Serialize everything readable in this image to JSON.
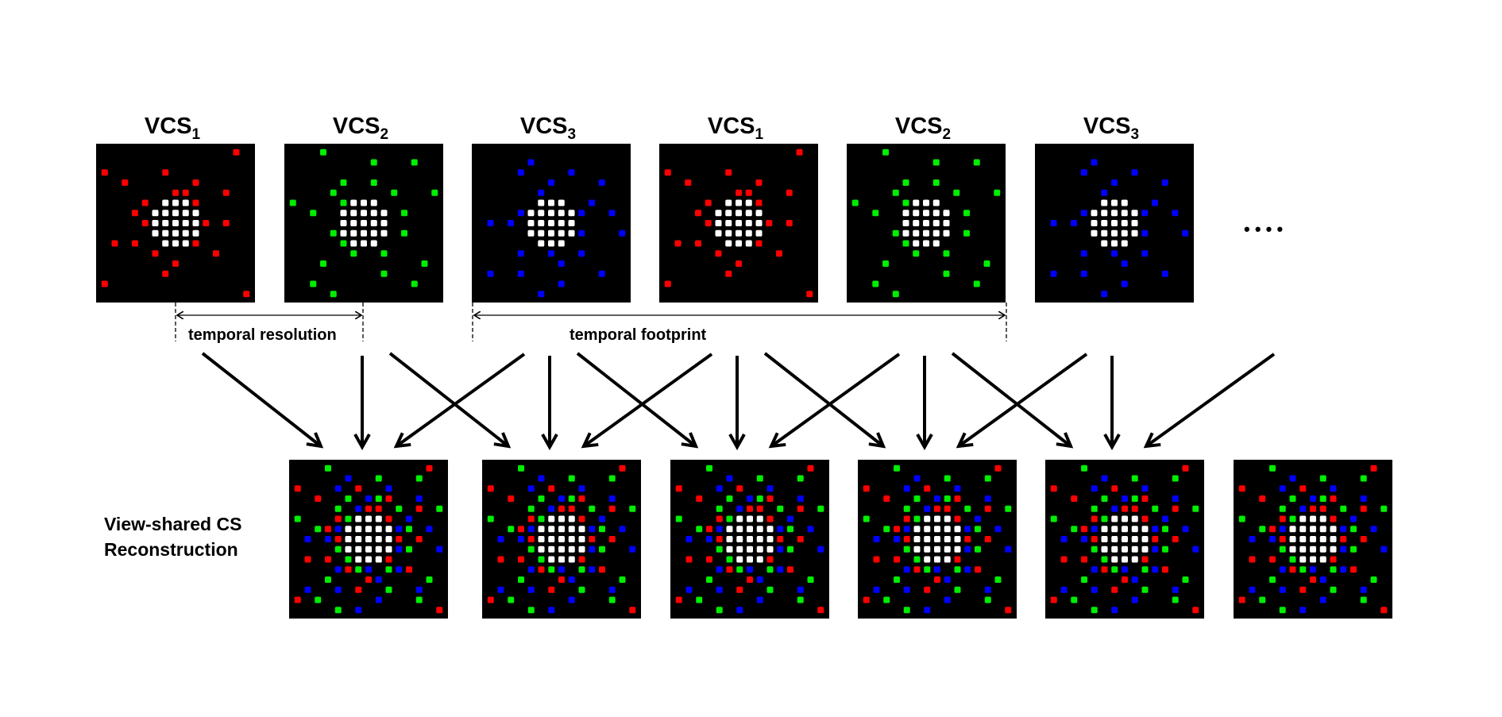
{
  "top_row": {
    "frames": [
      {
        "title": "VCS",
        "subscript": "1",
        "set": "vcs1"
      },
      {
        "title": "VCS",
        "subscript": "2",
        "set": "vcs2"
      },
      {
        "title": "VCS",
        "subscript": "3",
        "set": "vcs3"
      },
      {
        "title": "VCS",
        "subscript": "1",
        "set": "vcs1"
      },
      {
        "title": "VCS",
        "subscript": "2",
        "set": "vcs2"
      },
      {
        "title": "VCS",
        "subscript": "3",
        "set": "vcs3"
      }
    ],
    "ellipsis": "• • • •"
  },
  "annotations": {
    "temporal_resolution": "temporal resolution",
    "temporal_footprint": "temporal footprint"
  },
  "bottom_row": {
    "label_line1": "View-shared CS",
    "label_line2": "Reconstruction",
    "frame_count": 6
  },
  "colors": {
    "background": "#000000",
    "center": "#ffffff",
    "vcs1": "#ff0000",
    "vcs2": "#00ee00",
    "vcs3": "#0000ff"
  },
  "sampling": {
    "center": [
      [
        -1,
        -2
      ],
      [
        0,
        -2
      ],
      [
        1,
        -2
      ],
      [
        -2,
        -1
      ],
      [
        -1,
        -1
      ],
      [
        0,
        -1
      ],
      [
        1,
        -1
      ],
      [
        2,
        -1
      ],
      [
        -2,
        0
      ],
      [
        -1,
        0
      ],
      [
        0,
        0
      ],
      [
        1,
        0
      ],
      [
        2,
        0
      ],
      [
        -2,
        1
      ],
      [
        -1,
        1
      ],
      [
        0,
        1
      ],
      [
        1,
        1
      ],
      [
        2,
        1
      ],
      [
        -1,
        2
      ],
      [
        0,
        2
      ],
      [
        1,
        2
      ]
    ],
    "vcs1": [
      [
        6,
        -7
      ],
      [
        -7,
        -5
      ],
      [
        -1,
        -5
      ],
      [
        -5,
        -4
      ],
      [
        2,
        -4
      ],
      [
        0,
        -3
      ],
      [
        1,
        -3
      ],
      [
        5,
        -3
      ],
      [
        -3,
        -2
      ],
      [
        2,
        -2
      ],
      [
        -4,
        -1
      ],
      [
        -3,
        0
      ],
      [
        3,
        0
      ],
      [
        5,
        0
      ],
      [
        -6,
        2
      ],
      [
        -4,
        2
      ],
      [
        2,
        2
      ],
      [
        -2,
        3
      ],
      [
        4,
        3
      ],
      [
        0,
        4
      ],
      [
        -1,
        5
      ],
      [
        -7,
        6
      ],
      [
        7,
        7
      ]
    ],
    "vcs2": [
      [
        -4,
        -7
      ],
      [
        1,
        -6
      ],
      [
        5,
        -6
      ],
      [
        -2,
        -4
      ],
      [
        1,
        -4
      ],
      [
        -3,
        -3
      ],
      [
        3,
        -3
      ],
      [
        7,
        -3
      ],
      [
        -7,
        -2
      ],
      [
        -2,
        -2
      ],
      [
        -5,
        -1
      ],
      [
        4,
        -1
      ],
      [
        -3,
        1
      ],
      [
        4,
        1
      ],
      [
        -2,
        2
      ],
      [
        -1,
        3
      ],
      [
        2,
        3
      ],
      [
        -4,
        4
      ],
      [
        6,
        4
      ],
      [
        2,
        5
      ],
      [
        -5,
        6
      ],
      [
        5,
        6
      ],
      [
        -3,
        7
      ]
    ],
    "vcs3": [
      [
        -2,
        -6
      ],
      [
        -3,
        -5
      ],
      [
        2,
        -5
      ],
      [
        0,
        -4
      ],
      [
        5,
        -4
      ],
      [
        -1,
        -3
      ],
      [
        4,
        -2
      ],
      [
        -3,
        -1
      ],
      [
        3,
        -1
      ],
      [
        6,
        -1
      ],
      [
        -6,
        0
      ],
      [
        -4,
        0
      ],
      [
        3,
        1
      ],
      [
        7,
        1
      ],
      [
        -3,
        3
      ],
      [
        0,
        3
      ],
      [
        3,
        3
      ],
      [
        1,
        4
      ],
      [
        -6,
        5
      ],
      [
        -3,
        5
      ],
      [
        5,
        5
      ],
      [
        1,
        6
      ],
      [
        -1,
        7
      ]
    ]
  }
}
